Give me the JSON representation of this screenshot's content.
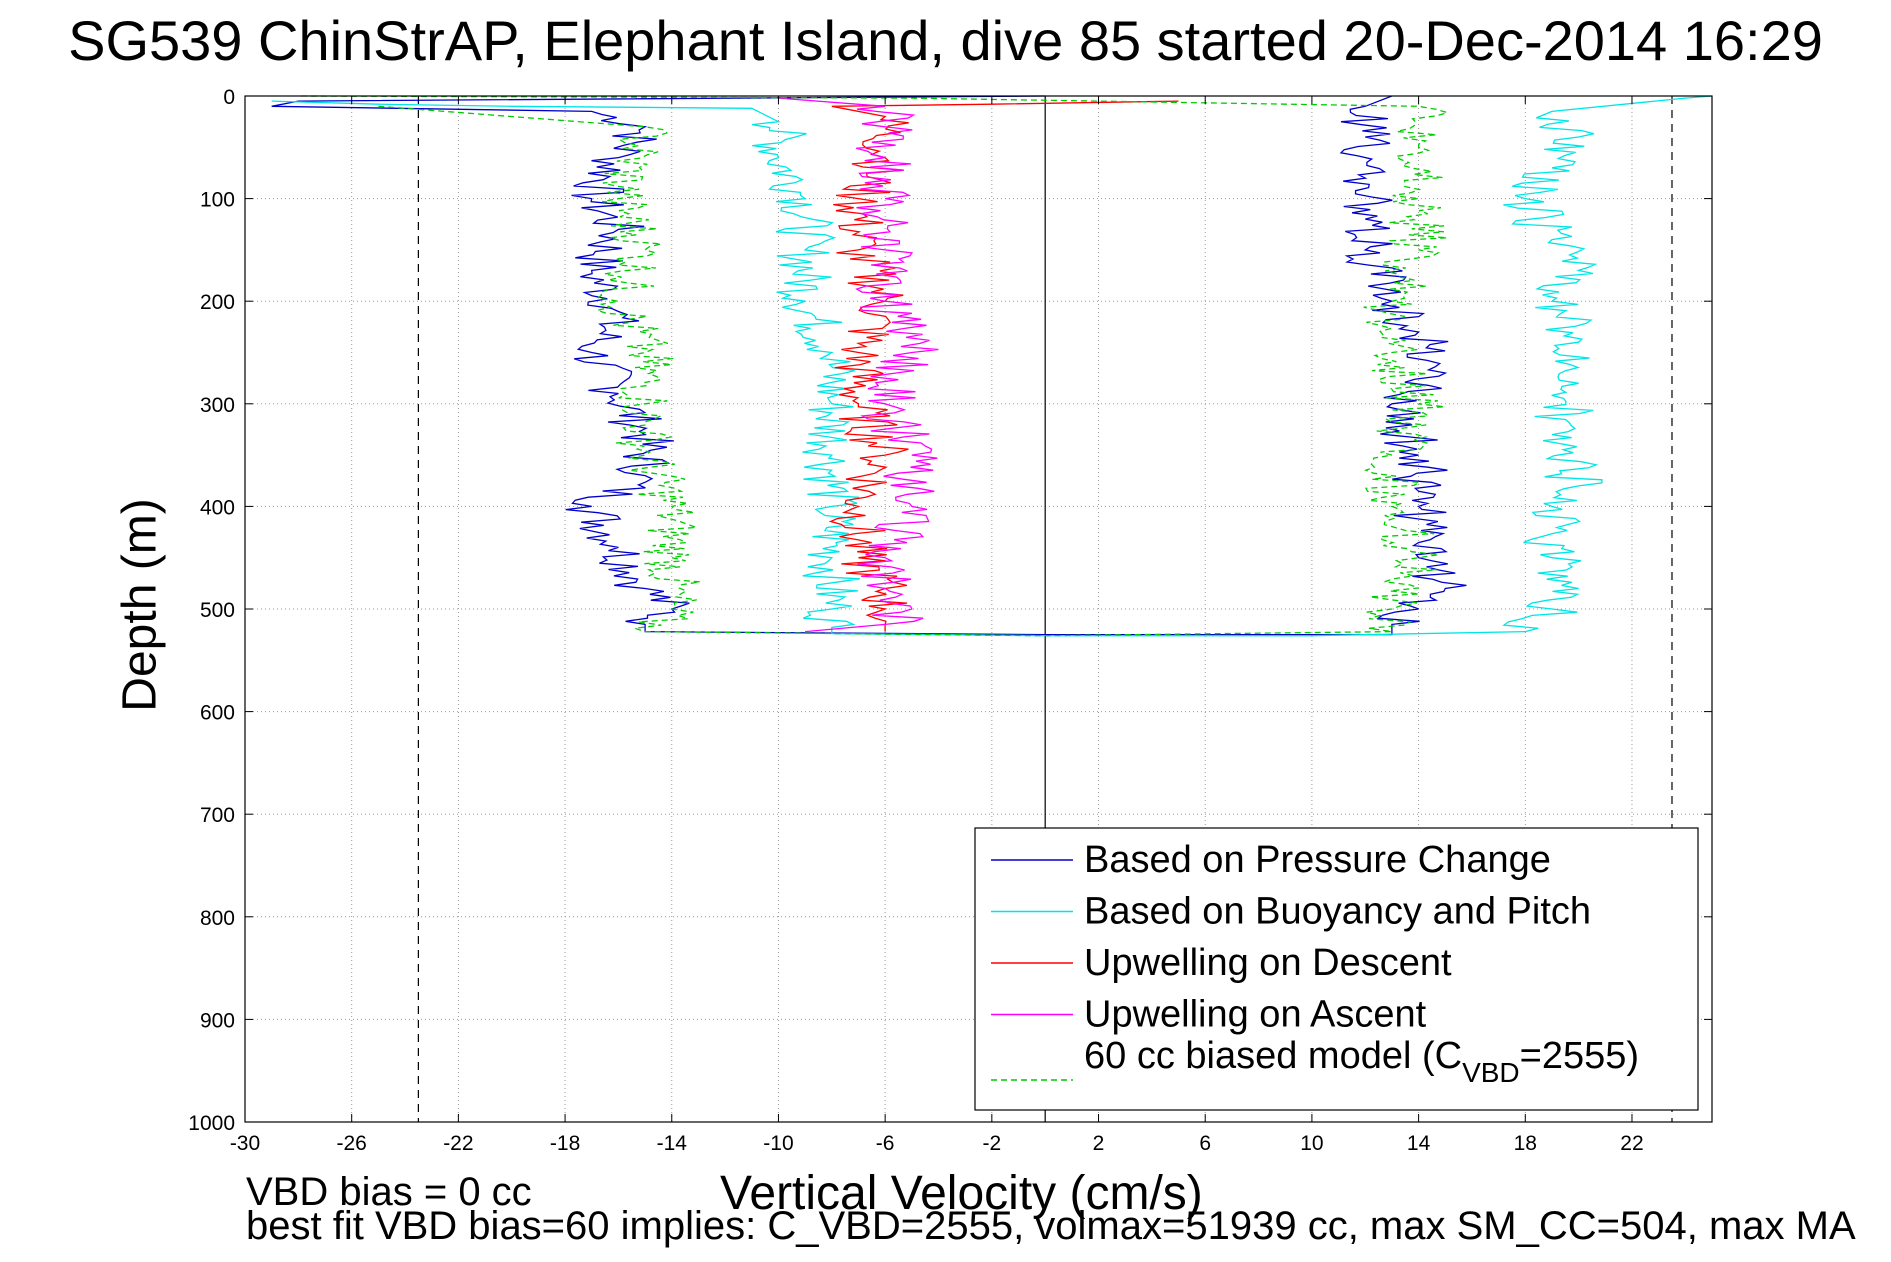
{
  "title": "SG539 ChinStrAP, Elephant Island, dive 85 started 20-Dec-2014 16:29",
  "notes": {
    "vbd_bias": "VBD bias = 0 cc",
    "best_fit": "best fit VBD bias=60 implies: C_VBD=2555, volmax=51939 cc, max SM_CC=504, max MA"
  },
  "colors": {
    "pressure": "#0000cc",
    "buoyancy": "#00e5e5",
    "descent": "#ff0000",
    "ascent": "#ff00ff",
    "model": "#00cc00"
  },
  "chart_data": {
    "type": "line",
    "xlabel": "Vertical Velocity (cm/s)",
    "ylabel": "Depth (m)",
    "xlim": [
      -30,
      25
    ],
    "ylim": [
      0,
      1000
    ],
    "y_reversed": true,
    "grid": true,
    "legend_position": "bottom-right",
    "xticks": [
      -30,
      -26,
      -22,
      -18,
      -14,
      -10,
      -6,
      -2,
      2,
      6,
      10,
      14,
      18,
      22
    ],
    "yticks": [
      0,
      100,
      200,
      300,
      400,
      500,
      600,
      700,
      800,
      900,
      1000
    ],
    "reference_lines": {
      "vertical_solid": [
        0
      ],
      "vertical_dashed": [
        -23.5,
        23.5
      ]
    },
    "legend": [
      {
        "label": "Based on Pressure Change",
        "color": "#0000cc",
        "style": "solid"
      },
      {
        "label": "Based on Buoyancy and Pitch",
        "color": "#00e5e5",
        "style": "solid"
      },
      {
        "label": "Upwelling on Descent",
        "color": "#ff0000",
        "style": "solid"
      },
      {
        "label": "Upwelling on Ascent",
        "color": "#ff00ff",
        "style": "solid"
      },
      {
        "label": "60 cc biased model (C",
        "sub": "VBD",
        "suffix": "=2555)",
        "color": "#00cc00",
        "style": "dashed"
      }
    ],
    "series": [
      {
        "name": "Based on Pressure Change",
        "color": "#0000cc",
        "points": [
          [
            0,
            0
          ],
          [
            -28,
            5
          ],
          [
            -29,
            10
          ],
          [
            -17,
            15
          ],
          [
            -15,
            30
          ],
          [
            -16,
            60
          ],
          [
            -17,
            100
          ],
          [
            -16,
            130
          ],
          [
            -17,
            170
          ],
          [
            -16,
            210
          ],
          [
            -17,
            250
          ],
          [
            -16,
            290
          ],
          [
            -15,
            330
          ],
          [
            -15,
            370
          ],
          [
            -17,
            400
          ],
          [
            -16,
            440
          ],
          [
            -15,
            480
          ],
          [
            -14,
            500
          ],
          [
            -15,
            515
          ],
          [
            -15,
            522
          ],
          [
            0,
            525
          ],
          [
            13,
            525
          ],
          [
            13,
            515
          ],
          [
            14,
            500
          ],
          [
            15,
            480
          ],
          [
            14,
            450
          ],
          [
            14,
            400
          ],
          [
            14,
            350
          ],
          [
            13,
            300
          ],
          [
            15,
            270
          ],
          [
            14,
            230
          ],
          [
            13,
            200
          ],
          [
            12,
            150
          ],
          [
            12,
            120
          ],
          [
            12,
            80
          ],
          [
            12,
            40
          ],
          [
            12,
            10
          ],
          [
            13,
            0
          ]
        ]
      },
      {
        "name": "Based on Buoyancy and Pitch",
        "color": "#00e5e5",
        "points": [
          [
            -29,
            5
          ],
          [
            -25,
            8
          ],
          [
            -20,
            10
          ],
          [
            -11,
            12
          ],
          [
            -10,
            25
          ],
          [
            -10,
            60
          ],
          [
            -9,
            100
          ],
          [
            -9,
            150
          ],
          [
            -9,
            200
          ],
          [
            -8,
            250
          ],
          [
            -8,
            300
          ],
          [
            -8,
            350
          ],
          [
            -8,
            400
          ],
          [
            -8,
            450
          ],
          [
            -8,
            500
          ],
          [
            -8,
            518
          ],
          [
            -8,
            524
          ],
          [
            0,
            526
          ],
          [
            10,
            526
          ],
          [
            18,
            522
          ],
          [
            19,
            500
          ],
          [
            20,
            480
          ],
          [
            19,
            450
          ],
          [
            19,
            400
          ],
          [
            20,
            380
          ],
          [
            19,
            330
          ],
          [
            20,
            280
          ],
          [
            20,
            240
          ],
          [
            19,
            200
          ],
          [
            20,
            170
          ],
          [
            19,
            140
          ],
          [
            18,
            100
          ],
          [
            19,
            70
          ],
          [
            20,
            40
          ],
          [
            19,
            15
          ],
          [
            24,
            2
          ],
          [
            25,
            0
          ]
        ]
      },
      {
        "name": "Upwelling on Descent",
        "color": "#ff0000",
        "points": [
          [
            5,
            5
          ],
          [
            -2,
            8
          ],
          [
            -8,
            10
          ],
          [
            -6,
            20
          ],
          [
            -6,
            60
          ],
          [
            -7,
            100
          ],
          [
            -7,
            150
          ],
          [
            -6,
            200
          ],
          [
            -7,
            250
          ],
          [
            -7,
            300
          ],
          [
            -6,
            350
          ],
          [
            -7,
            400
          ],
          [
            -7,
            450
          ],
          [
            -6,
            480
          ],
          [
            -6,
            500
          ],
          [
            -6,
            515
          ],
          [
            -6,
            522
          ]
        ]
      },
      {
        "name": "Upwelling on Ascent",
        "color": "#ff00ff",
        "points": [
          [
            -9,
            522
          ],
          [
            -6,
            515
          ],
          [
            -5,
            500
          ],
          [
            -6,
            480
          ],
          [
            -6,
            450
          ],
          [
            -5,
            400
          ],
          [
            -5,
            350
          ],
          [
            -6,
            300
          ],
          [
            -5,
            250
          ],
          [
            -6,
            200
          ],
          [
            -6,
            150
          ],
          [
            -6,
            100
          ],
          [
            -6,
            60
          ],
          [
            -6,
            30
          ],
          [
            -6,
            10
          ],
          [
            -10,
            2
          ]
        ]
      },
      {
        "name": "60 cc biased model (CVBD=2555)",
        "color": "#00cc00",
        "points": [
          [
            -25,
            10
          ],
          [
            -15,
            30
          ],
          [
            -16,
            100
          ],
          [
            -15,
            150
          ],
          [
            -16,
            200
          ],
          [
            -15,
            250
          ],
          [
            -15,
            300
          ],
          [
            -15,
            350
          ],
          [
            -14,
            400
          ],
          [
            -14,
            450
          ],
          [
            -14,
            500
          ],
          [
            -15,
            522
          ],
          [
            0,
            526
          ],
          [
            13,
            522
          ],
          [
            13,
            500
          ],
          [
            14,
            450
          ],
          [
            13,
            400
          ],
          [
            13,
            350
          ],
          [
            14,
            300
          ],
          [
            13,
            250
          ],
          [
            13,
            200
          ],
          [
            14,
            150
          ],
          [
            14,
            100
          ],
          [
            14,
            50
          ],
          [
            14,
            10
          ],
          [
            -5,
            2
          ],
          [
            -28,
            0
          ]
        ]
      }
    ]
  }
}
